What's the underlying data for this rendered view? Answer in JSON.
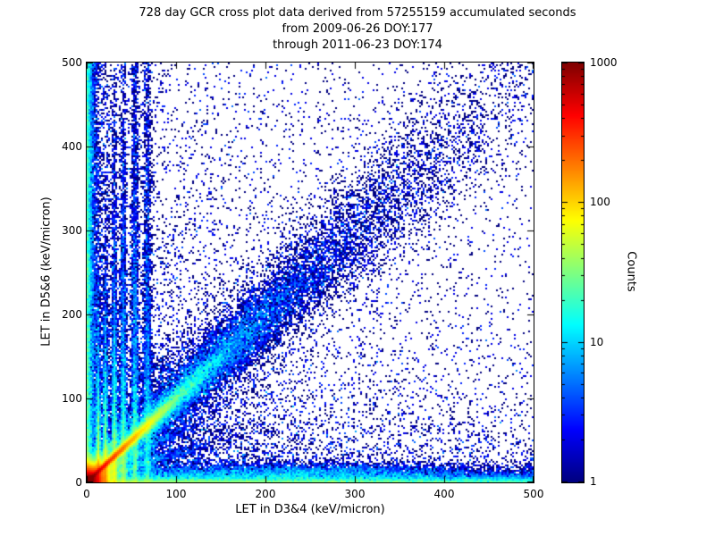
{
  "chart_data": {
    "type": "heatmap",
    "title": "728 day GCR cross plot data derived from 57255159 accumulated seconds",
    "subtitle_from": "from 2009-06-26 DOY:177",
    "subtitle_through": "through 2011-06-23 DOY:174",
    "xlabel": "LET in D3&4 (keV/micron)",
    "ylabel": "LET in D5&6 (keV/micron)",
    "xlim": [
      0,
      500
    ],
    "ylim": [
      0,
      500
    ],
    "xticks": [
      0,
      100,
      200,
      300,
      400,
      500
    ],
    "yticks": [
      0,
      100,
      200,
      300,
      400,
      500
    ],
    "grid": false,
    "background_color": "#ffffff",
    "axes_color": "#000000",
    "colorbar": {
      "label": "Counts",
      "scale": "log",
      "min": 1,
      "max": 1000,
      "ticks": [
        1,
        10,
        100,
        1000
      ],
      "colormap": "jet",
      "min_color": "#00007f",
      "max_color": "#7f0000"
    },
    "heatmap": {
      "grid_nx": 250,
      "grid_ny": 235,
      "seed": 42,
      "description": "2D histogram of coincident LET in detector pair D3&4 vs D5&6; intense red hotspot at origin, bright diagonal correlation ridge y=x fading from red/orange near origin to a broad speckled blue band toward (500,500), several faint vertical streaks at low x, a cyan horizontal band along y~0 spanning all x, a green/cyan column along x~0, and sparse dark-blue single-count scatter everywhere.",
      "features": [
        {
          "type": "hotspot",
          "x": 0,
          "y": 0,
          "amplitude": 3000,
          "decay": 6
        },
        {
          "type": "ray",
          "slope": 1.0,
          "amplitude": 700,
          "decay": 38,
          "width0": 1.2,
          "width_grow": 0.02
        },
        {
          "type": "ray",
          "slope": 1.0,
          "amplitude": 20,
          "decay": 120,
          "width0": 3.5,
          "width_grow": 0.055
        },
        {
          "type": "ray",
          "slope": 0.35,
          "amplitude": 50,
          "decay": 35,
          "width0": 1.2,
          "width_grow": 0.03
        },
        {
          "type": "ray",
          "slope": 0.6,
          "amplitude": 80,
          "decay": 30,
          "width0": 1.2,
          "width_grow": 0.03
        },
        {
          "type": "ray",
          "slope": 1.7,
          "amplitude": 60,
          "decay": 30,
          "width0": 1.2,
          "width_grow": 0.03
        },
        {
          "type": "vertical_streak",
          "x": 13,
          "amplitude": 80,
          "height_decay": 55,
          "width": 1.3,
          "speckle": 325
        },
        {
          "type": "vertical_streak",
          "x": 21,
          "amplitude": 55,
          "height_decay": 75,
          "width": 1.4,
          "speckle": 340
        },
        {
          "type": "vertical_streak",
          "x": 31,
          "amplitude": 35,
          "height_decay": 110,
          "width": 1.6,
          "speckle": 390
        },
        {
          "type": "vertical_streak",
          "x": 41,
          "amplitude": 22,
          "height_decay": 150,
          "width": 1.8,
          "speckle": 440
        },
        {
          "type": "vertical_streak",
          "x": 54,
          "amplitude": 16,
          "height_decay": 190,
          "width": 2.0,
          "speckle": 500
        },
        {
          "type": "vertical_streak",
          "x": 68,
          "amplitude": 11,
          "height_decay": 215,
          "width": 2.3,
          "speckle": 500
        },
        {
          "type": "horizontal_band",
          "y0": 0,
          "amplitude": 45,
          "decay": 4,
          "x_fade": 900
        },
        {
          "type": "horizontal_cloud",
          "y0": 11,
          "y_sigma": 6,
          "amplitude": 6,
          "x_center": 230,
          "x_sigma": 110
        },
        {
          "type": "left_column",
          "amplitude": 35,
          "decay": 3.5,
          "y_fade": 1200
        },
        {
          "type": "diagonal_speckle",
          "count": 11000,
          "t_scale": 170,
          "spread0": 3,
          "spread_grow": 0.06
        },
        {
          "type": "diagonal_speckle",
          "count": 4200,
          "t_scale": 230,
          "spread0": 12,
          "spread_grow": 0.1
        },
        {
          "type": "uniform_speckle",
          "count": 4500
        },
        {
          "type": "exp_speckle",
          "count": 9000,
          "x_scale": 115,
          "y_scale": 115
        },
        {
          "type": "axis_speckle",
          "count": 3200,
          "scale": 10
        },
        {
          "type": "axis_speckle",
          "count": 4600,
          "scale": 55
        }
      ]
    }
  }
}
